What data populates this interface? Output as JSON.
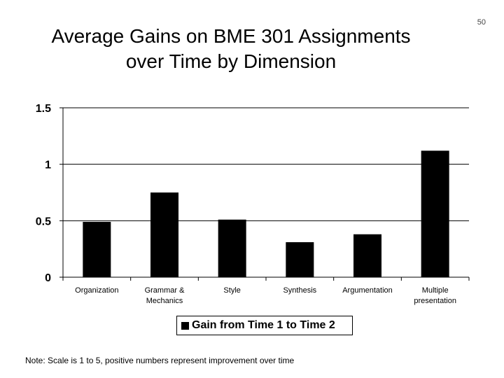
{
  "slide_number": "50",
  "title_lines": [
    "Average Gains on BME 301 Assignments",
    "over Time by Dimension"
  ],
  "legend_label": "Gain from Time 1 to Time 2",
  "note": "Note: Scale is 1 to 5, positive numbers represent improvement over time",
  "chart_data": {
    "type": "bar",
    "categories": [
      [
        "Organization"
      ],
      [
        "Grammar &",
        "Mechanics"
      ],
      [
        "Style"
      ],
      [
        "Synthesis"
      ],
      [
        "Argumentation"
      ],
      [
        "Multiple",
        "presentation"
      ]
    ],
    "series": [
      {
        "name": "Gain from Time 1 to Time 2",
        "values": [
          0.49,
          0.75,
          0.51,
          0.31,
          0.38,
          1.12
        ]
      }
    ],
    "yticks": [
      "0",
      "0.5",
      "1",
      "1.5"
    ],
    "ylim": [
      0,
      1.5
    ],
    "bar_color": "#000000",
    "grid": true,
    "legend_position": "bottom"
  }
}
